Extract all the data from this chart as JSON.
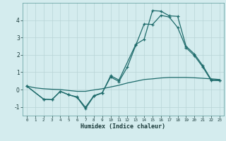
{
  "xlabel": "Humidex (Indice chaleur)",
  "bg_color": "#d4ecee",
  "grid_color": "#b8d4d6",
  "line_color": "#1e6b6b",
  "xlim": [
    -0.5,
    23.5
  ],
  "ylim": [
    -1.5,
    5.0
  ],
  "xticks": [
    0,
    1,
    2,
    3,
    4,
    5,
    6,
    7,
    8,
    9,
    10,
    11,
    12,
    13,
    14,
    15,
    16,
    17,
    18,
    19,
    20,
    21,
    22,
    23
  ],
  "yticks": [
    -1,
    0,
    1,
    2,
    3,
    4
  ],
  "line_diag_x": [
    0,
    1,
    2,
    3,
    4,
    5,
    6,
    7,
    8,
    9,
    10,
    11,
    12,
    13,
    14,
    15,
    16,
    17,
    18,
    19,
    20,
    21,
    22,
    23
  ],
  "line_diag_y": [
    0.2,
    0.1,
    0.05,
    0.02,
    0.0,
    -0.05,
    -0.1,
    -0.1,
    -0.02,
    0.05,
    0.15,
    0.25,
    0.38,
    0.48,
    0.58,
    0.62,
    0.67,
    0.7,
    0.7,
    0.7,
    0.68,
    0.65,
    0.62,
    0.58
  ],
  "line_upper_x": [
    0,
    2,
    3,
    4,
    5,
    6,
    7,
    8,
    9,
    10,
    11,
    13,
    14,
    15,
    16,
    17,
    18,
    19,
    20,
    21,
    22,
    23
  ],
  "line_upper_y": [
    0.2,
    -0.55,
    -0.58,
    -0.1,
    -0.3,
    -0.45,
    -1.1,
    -0.38,
    -0.2,
    0.8,
    0.55,
    2.6,
    2.9,
    4.55,
    4.52,
    4.25,
    4.22,
    2.5,
    2.05,
    1.38,
    0.58,
    0.55
  ],
  "line_lower_x": [
    0,
    2,
    3,
    4,
    5,
    6,
    7,
    8,
    9,
    10,
    11,
    12,
    13,
    14,
    15,
    16,
    17,
    18,
    19,
    20,
    21,
    22,
    23
  ],
  "line_lower_y": [
    0.2,
    -0.55,
    -0.58,
    -0.1,
    -0.3,
    -0.42,
    -1.02,
    -0.35,
    -0.18,
    0.72,
    0.47,
    1.3,
    2.55,
    3.78,
    3.75,
    4.28,
    4.18,
    3.58,
    2.42,
    1.95,
    1.3,
    0.52,
    0.52
  ]
}
